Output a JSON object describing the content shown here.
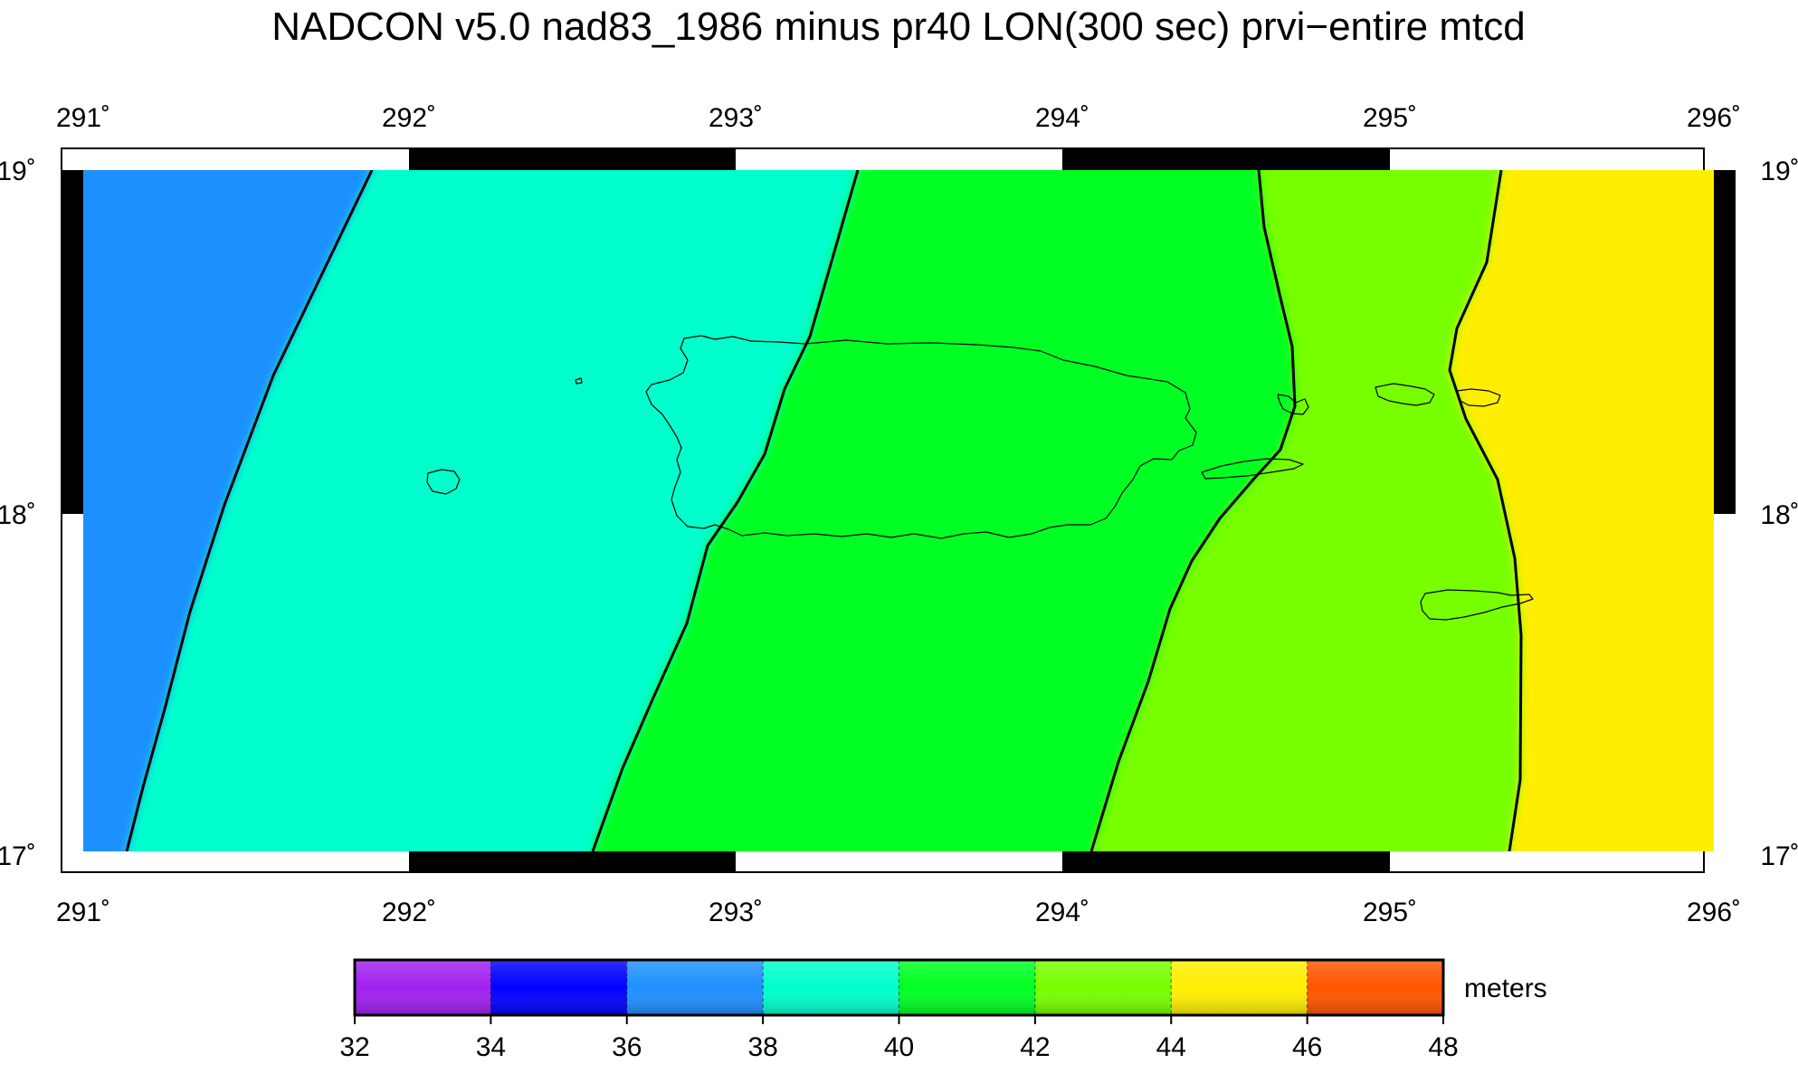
{
  "title": "NADCON v5.0 nad83_1986 minus pr40 LON(300 sec) prvi−entire mtcd",
  "map": {
    "lon_ticks": [
      "291˚",
      "292˚",
      "293˚",
      "294˚",
      "295˚",
      "296˚"
    ],
    "lat_ticks": [
      "19˚",
      "18˚",
      "17˚"
    ],
    "lon_range": [
      291,
      296
    ],
    "lat_range": [
      17,
      19
    ],
    "zones": [
      {
        "range": "36-38",
        "color": "#1E90FF"
      },
      {
        "range": "38-40",
        "color": "#00FFCC"
      },
      {
        "range": "40-42",
        "color": "#00FF22"
      },
      {
        "range": "42-44",
        "color": "#77FF00"
      },
      {
        "range": "44-46",
        "color": "#FFEE00"
      }
    ],
    "contours": [
      38,
      40,
      42,
      44
    ]
  },
  "colorbar": {
    "unit": "meters",
    "ticks": [
      "32",
      "34",
      "36",
      "38",
      "40",
      "42",
      "44",
      "46",
      "48"
    ],
    "colors": [
      "#A020F0",
      "#0000FF",
      "#1E90FF",
      "#00FFCC",
      "#00FF22",
      "#77FF00",
      "#FFEE00",
      "#FF5500"
    ]
  }
}
